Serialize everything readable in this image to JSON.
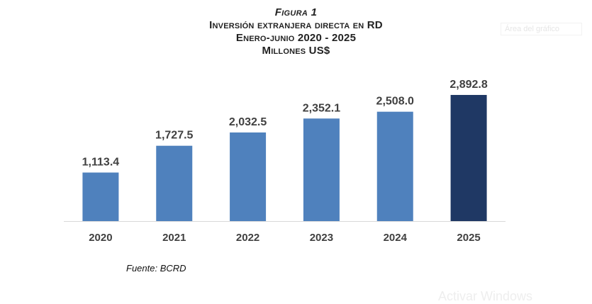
{
  "header": {
    "figure_label": "Figura 1",
    "title_line1": "Inversión extranjera directa en RD",
    "title_line2": "Enero-junio 2020 - 2025",
    "title_line3": "Millones US$"
  },
  "chart_area_tag": "Área del gráfico",
  "source_note": "Fuente: BCRD",
  "watermark": "Activar Windows",
  "colors": {
    "bar": "#4f81bd",
    "bar_highlight": "#1f3864",
    "axis": "#d9d9d9",
    "label": "#404040"
  },
  "chart_data": {
    "type": "bar",
    "title": "Inversión extranjera directa en RD",
    "subtitle": "Enero-junio 2020 - 2025",
    "unit": "Millones US$",
    "categories": [
      "2020",
      "2021",
      "2022",
      "2023",
      "2024",
      "2025"
    ],
    "values": [
      1113.4,
      1727.5,
      2032.5,
      2352.1,
      2508.0,
      2892.8
    ],
    "value_labels": [
      "1,113.4",
      "1,727.5",
      "2,032.5",
      "2,352.1",
      "2,508.0",
      "2,892.8"
    ],
    "highlight_index": 5,
    "ylim": [
      0,
      3250
    ],
    "grid": false,
    "legend": "none",
    "xlabel": "",
    "ylabel": ""
  }
}
